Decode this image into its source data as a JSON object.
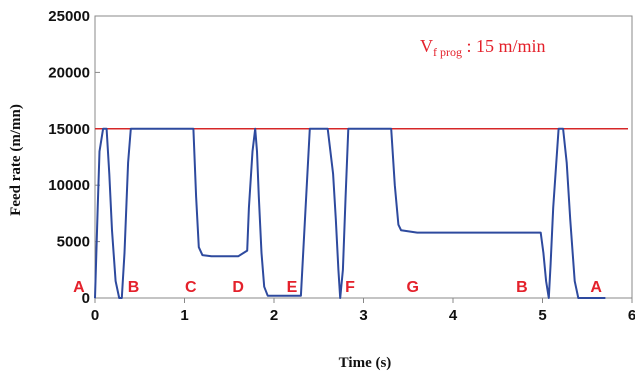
{
  "chart_data": {
    "type": "line",
    "xlabel": "Time (s)",
    "ylabel": "Feed rate (m/mn)",
    "xlim": [
      0,
      6
    ],
    "ylim": [
      0,
      25000
    ],
    "x_ticks": [
      "0",
      "1",
      "2",
      "3",
      "4",
      "5",
      "6"
    ],
    "y_ticks": [
      "0",
      "5000",
      "10000",
      "15000",
      "20000",
      "25000"
    ],
    "grid": false,
    "reference_line": {
      "y": 15000,
      "color": "#d62728"
    },
    "annotation": {
      "main": "V",
      "sub": "f prog",
      "rest": " : 15 m/min"
    },
    "point_labels": [
      {
        "text": "A",
        "x": -0.18
      },
      {
        "text": "B",
        "x": 0.43
      },
      {
        "text": "C",
        "x": 1.07
      },
      {
        "text": "D",
        "x": 1.6
      },
      {
        "text": "E",
        "x": 2.2
      },
      {
        "text": "F",
        "x": 2.85
      },
      {
        "text": "G",
        "x": 3.55
      },
      {
        "text": "B",
        "x": 4.77
      },
      {
        "text": "A",
        "x": 5.6
      }
    ],
    "series": [
      {
        "color": "#2e4a9e",
        "x": [
          0.0,
          0.03,
          0.05,
          0.09,
          0.13,
          0.16,
          0.19,
          0.23,
          0.27,
          0.3,
          0.33,
          0.37,
          0.4,
          0.42,
          0.5,
          0.6,
          0.7,
          0.8,
          0.9,
          1.0,
          1.1,
          1.13,
          1.16,
          1.2,
          1.3,
          1.4,
          1.5,
          1.6,
          1.7,
          1.72,
          1.76,
          1.79,
          1.81,
          1.83,
          1.86,
          1.89,
          1.93,
          1.95,
          1.97,
          2.1,
          2.3,
          2.4,
          2.44,
          2.47,
          2.5,
          2.6,
          2.66,
          2.69,
          2.72,
          2.74,
          2.77,
          2.8,
          2.83,
          2.87,
          2.9,
          3.0,
          3.2,
          3.31,
          3.35,
          3.39,
          3.42,
          3.6,
          3.8,
          4.0,
          4.2,
          4.4,
          4.6,
          4.8,
          4.98,
          5.01,
          5.04,
          5.07,
          5.09,
          5.12,
          5.18,
          5.23,
          5.27,
          5.31,
          5.36,
          5.4,
          5.7
        ],
        "y": [
          0,
          8000,
          13000,
          15000,
          15000,
          11000,
          6000,
          1500,
          0,
          0,
          4000,
          12000,
          15000,
          15000,
          15000,
          15000,
          15000,
          15000,
          15000,
          15000,
          15000,
          9000,
          4500,
          3800,
          3700,
          3700,
          3700,
          3700,
          4200,
          8000,
          13000,
          15000,
          13000,
          9000,
          4000,
          1000,
          200,
          200,
          200,
          200,
          200,
          15000,
          15000,
          15000,
          15000,
          15000,
          11000,
          7000,
          2500,
          0,
          2500,
          9000,
          15000,
          15000,
          15000,
          15000,
          15000,
          15000,
          10000,
          6500,
          6000,
          5800,
          5800,
          5800,
          5800,
          5800,
          5800,
          5800,
          5800,
          4000,
          1500,
          0,
          3000,
          8000,
          15000,
          15000,
          12000,
          7000,
          1500,
          0,
          0
        ]
      }
    ]
  }
}
